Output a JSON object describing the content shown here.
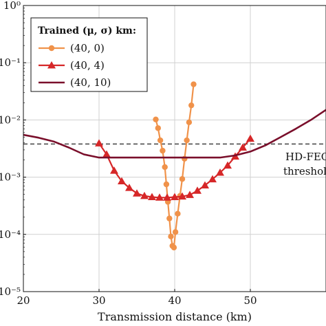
{
  "chart_data": {
    "type": "line",
    "xlabel": "Transmission distance (km)",
    "xlim": [
      20,
      60
    ],
    "ylim_log10": [
      -5,
      0
    ],
    "yscale": "log",
    "xticks": [
      20,
      30,
      40,
      50
    ],
    "yticks": [
      {
        "exp": 0,
        "label": "10⁰"
      },
      {
        "exp": -1,
        "label": "10⁻¹"
      },
      {
        "exp": -2,
        "label": "10⁻²"
      },
      {
        "exp": -3,
        "label": "10⁻³"
      },
      {
        "exp": -4,
        "label": "10⁻⁴"
      },
      {
        "exp": -5,
        "label": "10⁻⁵"
      }
    ],
    "grid": true,
    "legend_title": "Trained (μ, σ) km:",
    "legend_position": "top-left",
    "threshold": {
      "value": 0.0038,
      "label_line1": "HD-FEC",
      "label_line2": "threshold"
    },
    "series": [
      {
        "name": "(40, 0)",
        "color": "#f0924a",
        "marker": "circle",
        "x": [
          37.5,
          37.8,
          38.1,
          38.4,
          38.7,
          38.9,
          39.1,
          39.3,
          39.5,
          39.7,
          39.9,
          40.1,
          40.4,
          40.7,
          41.0,
          41.3,
          41.6,
          41.9,
          42.2,
          42.5
        ],
        "y": [
          0.0102,
          0.0072,
          0.0044,
          0.0029,
          0.0015,
          0.00075,
          0.00037,
          0.00019,
          9.2e-05,
          6.3e-05,
          5.9e-05,
          0.00011,
          0.00023,
          0.00047,
          0.00093,
          0.0021,
          0.0044,
          0.0091,
          0.018,
          0.042
        ]
      },
      {
        "name": "(40, 4)",
        "color": "#d62728",
        "marker": "triangle",
        "x": [
          30,
          31,
          32,
          33,
          34,
          35,
          36,
          37,
          38,
          39,
          40,
          41,
          42,
          43,
          44,
          45,
          46,
          47,
          48,
          49,
          50
        ],
        "y": [
          0.0039,
          0.0025,
          0.0013,
          0.00085,
          0.00065,
          0.00052,
          0.00047,
          0.00045,
          0.00044,
          0.00044,
          0.00045,
          0.00046,
          0.00049,
          0.00058,
          0.00072,
          0.00092,
          0.0012,
          0.0016,
          0.0023,
          0.0033,
          0.0047
        ]
      },
      {
        "name": "(40, 10)",
        "color": "#7a0f2b",
        "marker": "none",
        "x": [
          20,
          22,
          24,
          26,
          28,
          30,
          32,
          34,
          36,
          38,
          40,
          42,
          44,
          46,
          48,
          50,
          52,
          54,
          56,
          58,
          60
        ],
        "y": [
          0.0055,
          0.0049,
          0.0042,
          0.0033,
          0.0025,
          0.0022,
          0.0022,
          0.0022,
          0.0022,
          0.0022,
          0.0022,
          0.0022,
          0.0022,
          0.0022,
          0.0024,
          0.0028,
          0.0036,
          0.005,
          0.007,
          0.01,
          0.015
        ]
      }
    ]
  }
}
